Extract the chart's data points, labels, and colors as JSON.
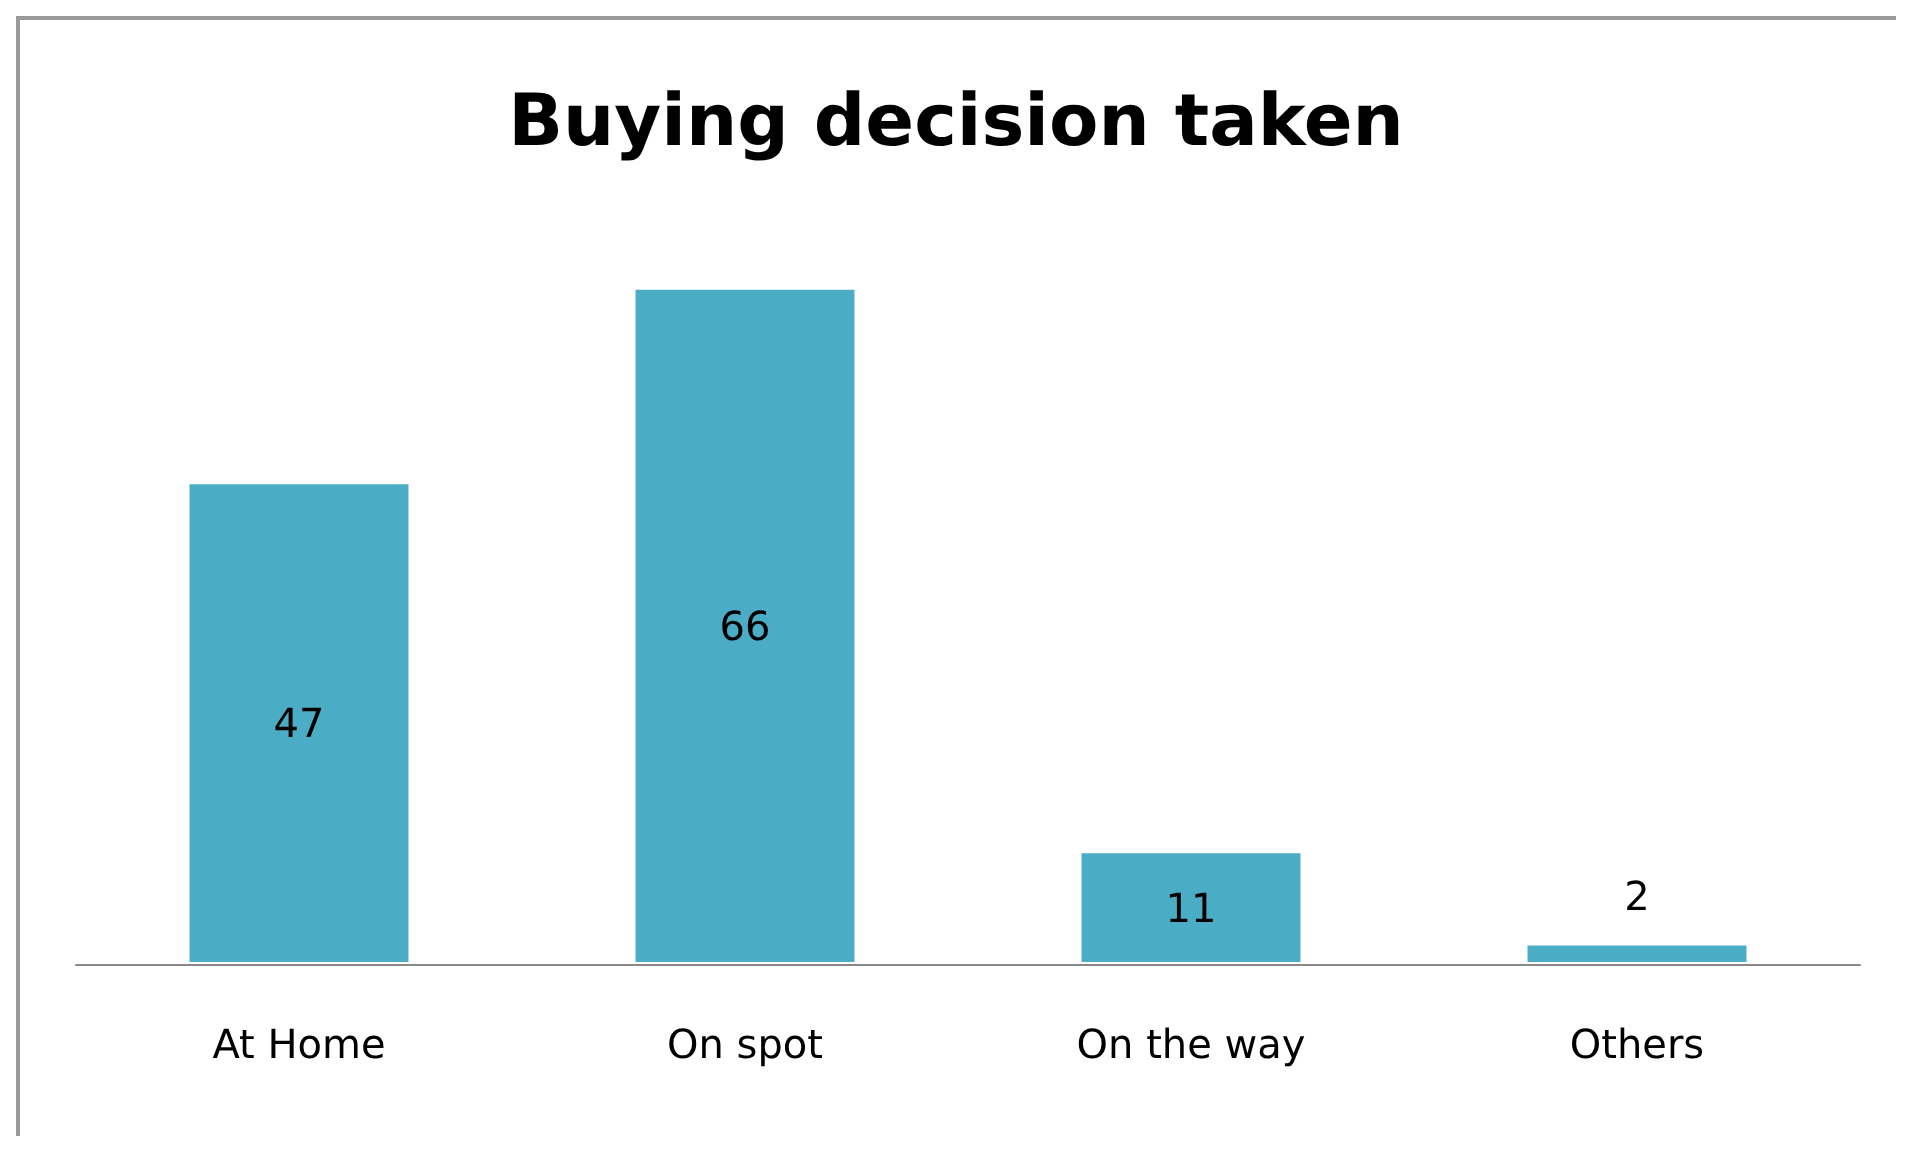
{
  "chart_data": {
    "type": "bar",
    "title": "Buying decision taken",
    "categories": [
      "At Home",
      "On spot",
      "On the way",
      "Others"
    ],
    "values": [
      47,
      66,
      11,
      2
    ],
    "color": "#4bacc6",
    "data_labels": true
  }
}
